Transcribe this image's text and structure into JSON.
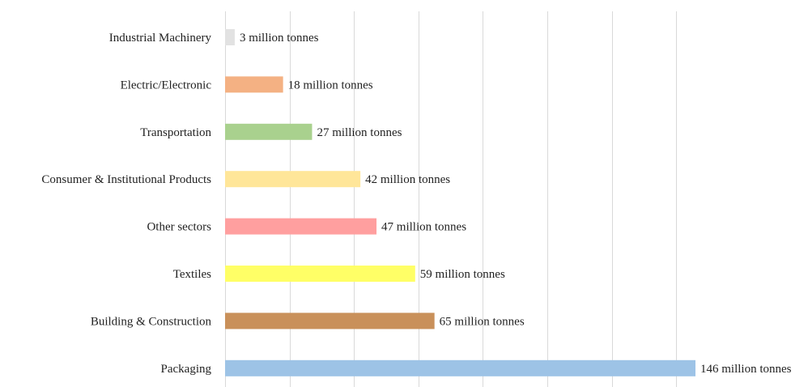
{
  "chart_data": {
    "type": "bar",
    "orientation": "horizontal",
    "title": "",
    "xlabel": "",
    "ylabel": "",
    "xlim": [
      0,
      150
    ],
    "grid": true,
    "legend": "none",
    "categories": [
      "Industrial Machinery",
      "Electric/Electronic",
      "Transportation",
      "Consumer & Institutional Products",
      "Other sectors",
      "Textiles",
      "Building & Construction",
      "Packaging"
    ],
    "values": [
      3,
      18,
      27,
      42,
      47,
      59,
      65,
      146
    ],
    "data_labels": [
      "3 million tonnes",
      "18 million tonnes",
      "27 million tonnes",
      "42 million tonnes",
      "47 million tonnes",
      "59 million tonnes",
      "65 million tonnes",
      "146 million tonnes"
    ],
    "colors": [
      "#e2e2e2",
      "#f4b183",
      "#a9d18e",
      "#ffe699",
      "#ff9f9f",
      "#ffff66",
      "#c9905a",
      "#9dc3e6"
    ]
  }
}
